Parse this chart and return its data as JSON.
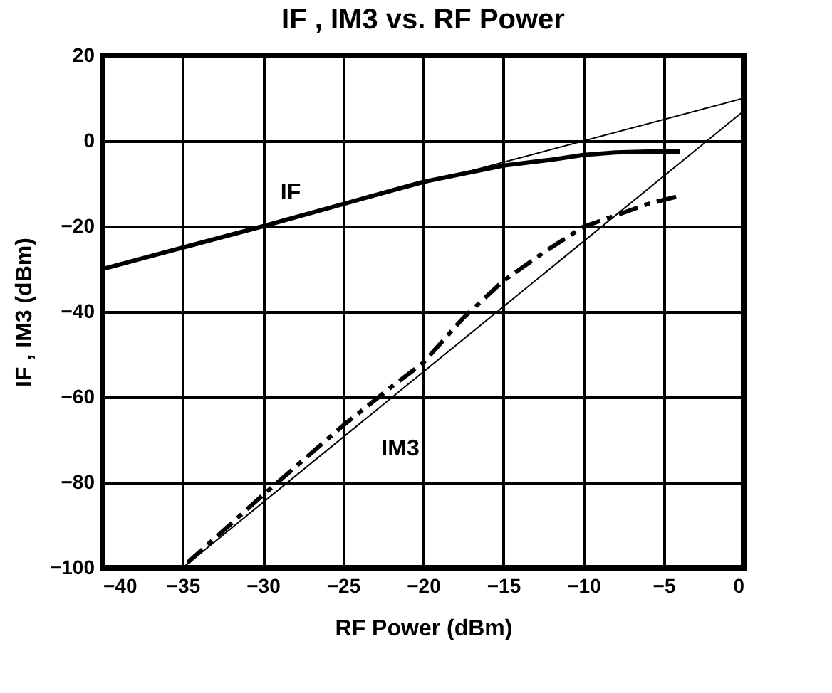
{
  "chart_data": {
    "type": "line",
    "title": "IF , IM3 vs. RF Power",
    "xlabel": "RF Power (dBm)",
    "ylabel": "IF , IM3 (dBm)",
    "xlim": [
      -40,
      0
    ],
    "xticks": [
      -40,
      -35,
      -30,
      -25,
      -20,
      -15,
      -10,
      -5,
      0
    ],
    "ylim": [
      -100,
      20
    ],
    "yticks": [
      -100,
      -80,
      -60,
      -40,
      -20,
      0,
      20
    ],
    "grid": true,
    "marker": "none",
    "series": [
      {
        "color": "#000000",
        "line_style": "solid",
        "x": [
          -40,
          -35,
          -30,
          -25,
          -20,
          -15,
          -12,
          -10,
          -8,
          -6,
          -4
        ],
        "values": [
          -30,
          -25,
          -20,
          -14.8,
          -9.6,
          -5.8,
          -4.4,
          -3.3,
          -2.7,
          -2.5,
          -2.5
        ]
      },
      {
        "color": "#000000",
        "line_style": "dashed",
        "x": [
          -34.7,
          -30,
          -25,
          -21.9,
          -20,
          -17.5,
          -15,
          -12.5,
          -10,
          -8,
          -6,
          -4
        ],
        "values": [
          -98.8,
          -83,
          -66.7,
          -57.4,
          -52,
          -41.5,
          -32.8,
          -26.2,
          -20.1,
          -17.5,
          -14.8,
          -12.9
        ]
      },
      {
        "type": "line",
        "color": "#000000",
        "line_style": "solid",
        "x": [
          -40,
          0
        ],
        "values": [
          -30,
          10
        ]
      },
      {
        "type": "line",
        "color": "#000000",
        "line_style": "solid",
        "x": [
          -35,
          0
        ],
        "values": [
          -100,
          7
        ]
      }
    ],
    "annotations": [
      "IF",
      "IM3"
    ]
  }
}
